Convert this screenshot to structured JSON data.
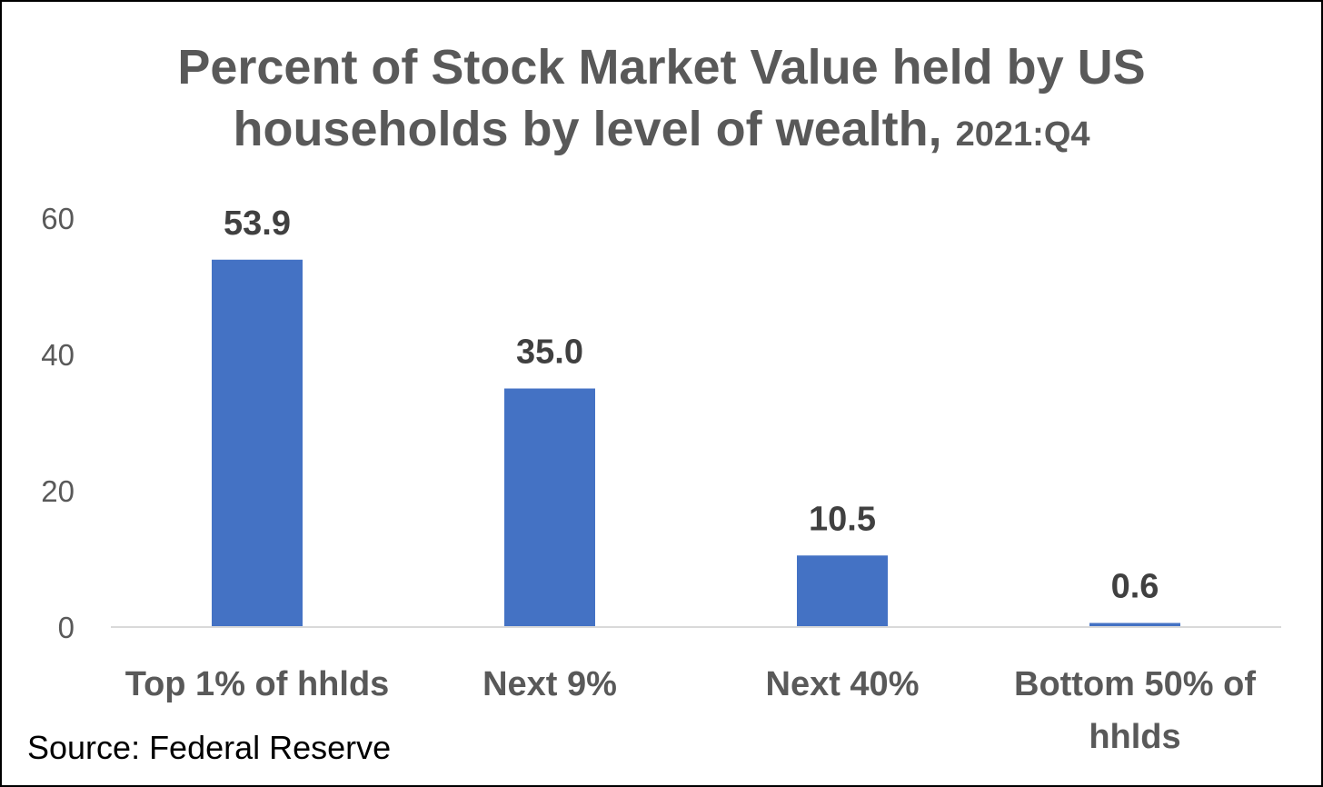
{
  "chart_data": {
    "type": "bar",
    "title": "Percent of Stock Market Value held by US households by level of wealth,",
    "title_line1": "Percent of Stock Market Value held by US",
    "title_line2": "households by level of wealth,",
    "subtitle": "2021:Q4",
    "categories": [
      "Top 1% of hhlds",
      "Next 9%",
      "Next 40%",
      "Bottom 50% of hhlds"
    ],
    "category_lines": [
      [
        "Top 1% of hhlds"
      ],
      [
        "Next 9%"
      ],
      [
        "Next 40%"
      ],
      [
        "Bottom 50% of",
        "hhlds"
      ]
    ],
    "values": [
      53.9,
      35.0,
      10.5,
      0.6
    ],
    "value_labels": [
      "53.9",
      "35.0",
      "10.5",
      "0.6"
    ],
    "ylim": [
      0,
      60
    ],
    "yticks": [
      0,
      20,
      40,
      60
    ],
    "xlabel": "",
    "ylabel": "",
    "grid": false,
    "legend": "none",
    "bar_color": "#4472C4",
    "axis_color": "#D9D9D9"
  },
  "source": "Source: Federal Reserve"
}
